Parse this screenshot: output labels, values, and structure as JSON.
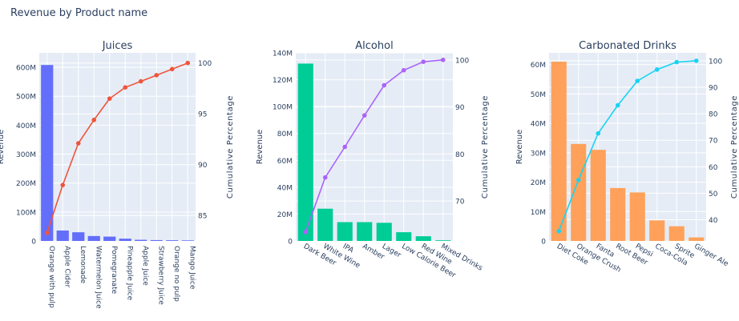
{
  "page_title": "Revenue by Product name",
  "chart_data": [
    {
      "type": "bar",
      "title": "Juices",
      "ylabel": "Revenue",
      "y2label": "Cumulative Percentage",
      "color": "#636efa",
      "line_color": "#ef553b",
      "categories": [
        "Orange with pulp",
        "Apple Cider",
        "Lemonade",
        "Watermelon Juice",
        "Pomegranate",
        "Pineapple Juice",
        "Apple Juice",
        "Strawberry Juice",
        "Orange no pulp",
        "Mango Juice"
      ],
      "series": [
        {
          "values": [
            608000000,
            36000000,
            30000000,
            17000000,
            15000000,
            8000000,
            4000000,
            3000000,
            2500000,
            2000000
          ]
        },
        {
          "values": [
            83.3,
            88.0,
            92.1,
            94.4,
            96.5,
            97.6,
            98.2,
            98.8,
            99.4,
            100
          ]
        }
      ],
      "ylim": [
        0,
        650000000
      ],
      "yticks": [
        0,
        100000000,
        200000000,
        300000000,
        400000000,
        500000000,
        600000000
      ],
      "ytick_labels": [
        "0",
        "100M",
        "200M",
        "300M",
        "400M",
        "500M",
        "600M"
      ],
      "y2lim": [
        82.5,
        101
      ],
      "y2ticks": [
        85,
        90,
        95,
        100
      ],
      "y2tick_labels": [
        "85",
        "90",
        "95",
        "100"
      ],
      "xtick_rotation": 90
    },
    {
      "type": "bar",
      "title": "Alcohol",
      "ylabel": "Revenue",
      "y2label": "Cumulative Percentage",
      "color": "#00cc96",
      "line_color": "#ab63fa",
      "categories": [
        "Dark Beer",
        "White Wine",
        "IPA",
        "Amber",
        "Lager",
        "Low Calorie Beer",
        "Red Wine",
        "Mixed Drinks"
      ],
      "series": [
        {
          "values": [
            132000000,
            24000000,
            14000000,
            14000000,
            13500000,
            6500000,
            3500000,
            500000
          ]
        },
        {
          "values": [
            63.4,
            75.0,
            81.5,
            88.2,
            94.6,
            97.8,
            99.6,
            100
          ]
        }
      ],
      "ylim": [
        0,
        140000000
      ],
      "yticks": [
        0,
        20000000,
        40000000,
        60000000,
        80000000,
        100000000,
        120000000,
        140000000
      ],
      "ytick_labels": [
        "0",
        "20M",
        "40M",
        "60M",
        "80M",
        "100M",
        "120M",
        "140M"
      ],
      "y2lim": [
        61.5,
        101.5
      ],
      "y2ticks": [
        70,
        80,
        90,
        100
      ],
      "y2tick_labels": [
        "70",
        "80",
        "90",
        "100"
      ],
      "xtick_rotation": 30
    },
    {
      "type": "bar",
      "title": "Carbonated Drinks",
      "ylabel": "Revenue",
      "y2label": "Cumulative Percentage",
      "color": "#ffa15a",
      "line_color": "#19d3f3",
      "categories": [
        "Diet Coke",
        "Orange Crush",
        "Fanta",
        "Root Beer",
        "Pepsi",
        "Coca-Cola",
        "Sprite",
        "Ginger Ale"
      ],
      "series": [
        {
          "values": [
            61000000,
            33000000,
            31000000,
            18000000,
            16500000,
            7000000,
            5000000,
            1200000
          ]
        },
        {
          "values": [
            35.7,
            55.0,
            72.6,
            83.2,
            92.4,
            96.7,
            99.5,
            100
          ]
        }
      ],
      "ylim": [
        0,
        64000000
      ],
      "yticks": [
        0,
        10000000,
        20000000,
        30000000,
        40000000,
        50000000,
        60000000
      ],
      "ytick_labels": [
        "0",
        "10M",
        "20M",
        "30M",
        "40M",
        "50M",
        "60M"
      ],
      "y2lim": [
        32,
        103
      ],
      "y2ticks": [
        40,
        50,
        60,
        70,
        80,
        90,
        100
      ],
      "y2tick_labels": [
        "40",
        "50",
        "60",
        "70",
        "80",
        "90",
        "100"
      ],
      "xtick_rotation": 30
    }
  ]
}
